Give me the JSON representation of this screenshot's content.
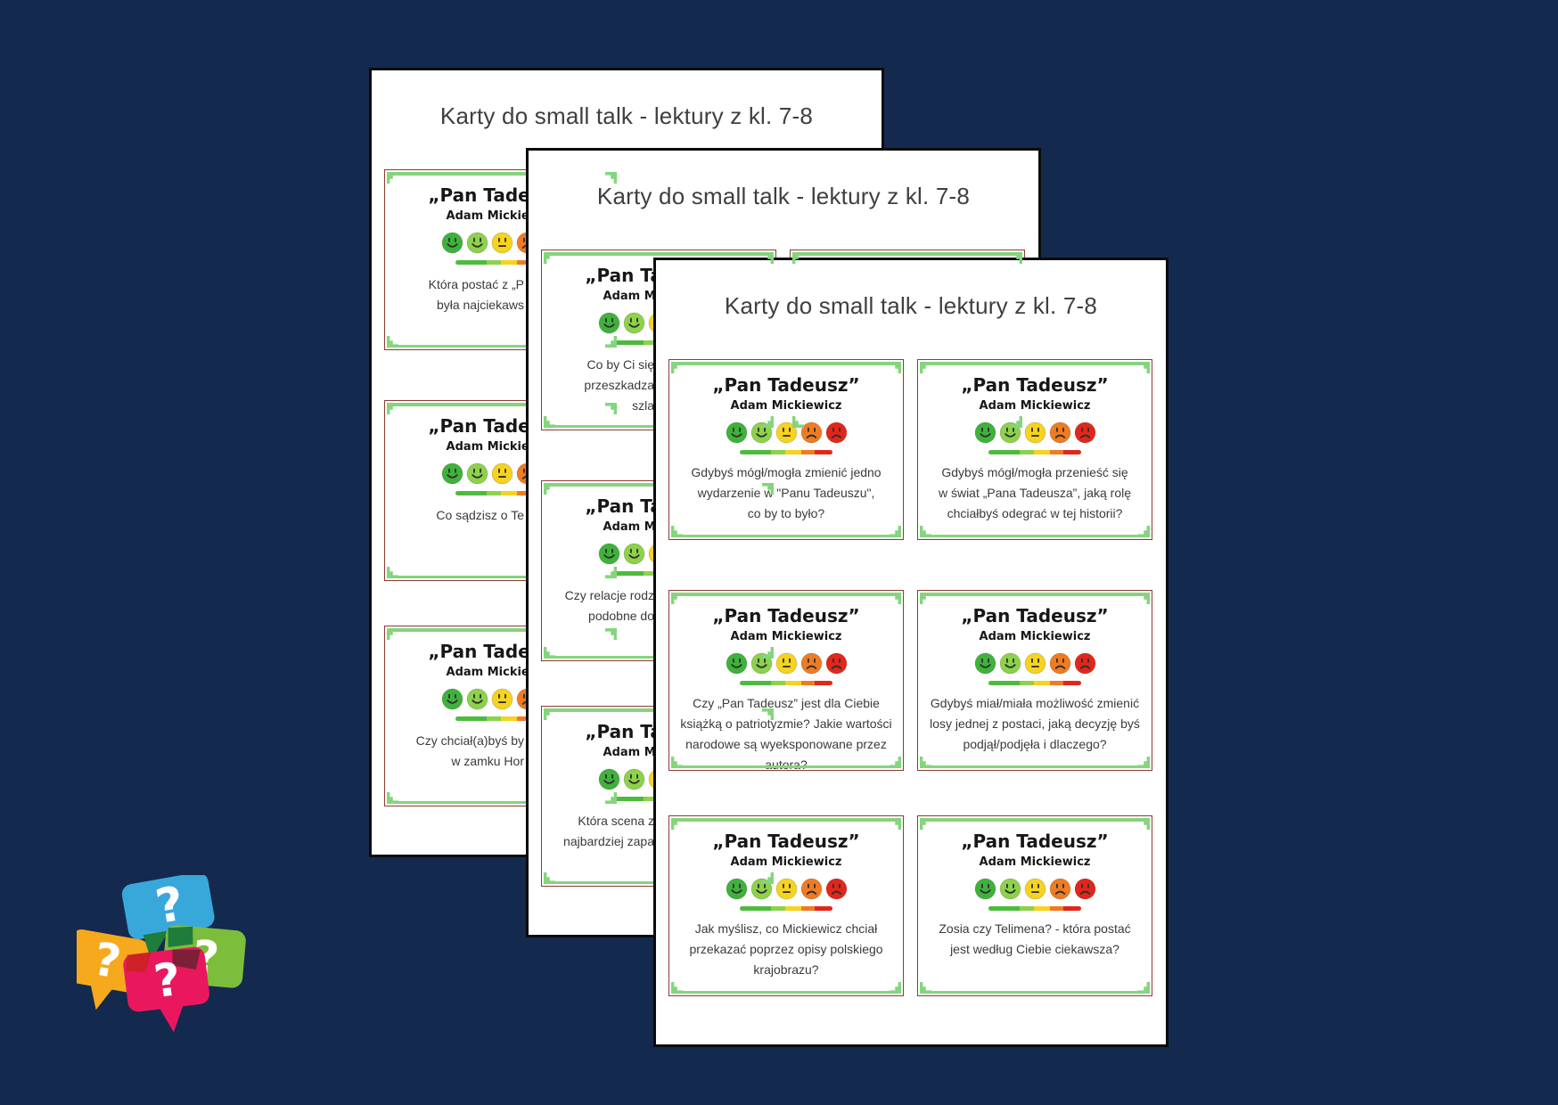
{
  "canvas": {
    "background_color": "#14294E"
  },
  "page_title": "Karty do small talk - lektury z kl. 7-8",
  "card": {
    "title": "„Pan Tadeusz”",
    "author": "Adam Mickiewicz",
    "border_color": "#8B3B35",
    "ornament_color": "#84D57D",
    "emoji_scale": {
      "faces": [
        {
          "name": "very-happy-face-icon",
          "color": "#3FB23C",
          "mouth": "smile"
        },
        {
          "name": "happy-face-icon",
          "color": "#8CD24B",
          "mouth": "smile"
        },
        {
          "name": "neutral-face-icon",
          "color": "#F6D31F",
          "mouth": "flat"
        },
        {
          "name": "sad-face-icon",
          "color": "#EF7B22",
          "mouth": "frown"
        },
        {
          "name": "angry-face-icon",
          "color": "#E2261B",
          "mouth": "frown"
        }
      ],
      "bar_colors": [
        "#4DBB3D",
        "#8CD24B",
        "#F6D31F",
        "#EF7B22",
        "#E2261B"
      ],
      "bar_widths_pct": [
        34,
        15,
        17,
        15,
        19
      ]
    }
  },
  "front_page": {
    "cards": [
      {
        "question": "Gdybyś mógł/mogła zmienić jedno\nwydarzenie w \"Panu Tadeuszu\",\nco by to było?"
      },
      {
        "question": "Gdybyś mógł/mogła przenieść się\nw świat „Pana Tadeusza”, jaką rolę\nchciałbyś odegrać w tej historii?"
      },
      {
        "question": "Czy „Pan Tadeusz” jest dla Ciebie\nksiążką o patriotyzmie? Jakie wartości\nnarodowe są wyeksponowane przez\nautora?"
      },
      {
        "question": "Gdybyś miał/miała możliwość zmienić\nlosy jednej z postaci, jaką decyzję byś\npodjął/podjęła i dlaczego?"
      },
      {
        "question": "Jak myślisz, co Mickiewicz chciał\nprzekazać poprzez opisy polskiego\nkrajobrazu?"
      },
      {
        "question": "Zosia czy Telimena? - która postać\njest według Ciebie ciekawsza?"
      }
    ]
  },
  "middle_page": {
    "cards": [
      {
        "question": "Co by Ci się\nprzeszkadza\nszla"
      },
      {
        "question": "Czy relacje rodz\npodobne do"
      },
      {
        "question": "Która scena z\nnajbardziej zapa"
      }
    ]
  },
  "back_page": {
    "cards": [
      {
        "question": "Która postać z „P\nbyła najciekaws"
      },
      {
        "question": "Co sądzisz o Te"
      },
      {
        "question": "Czy chciał(a)byś by\nw zamku Hor"
      }
    ]
  },
  "logo": {
    "name": "question-speech-bubbles-logo",
    "question_mark": "?",
    "bubble_colors": {
      "blue": "#38A8DB",
      "yellow": "#F6A91D",
      "green": "#7CBE3B",
      "pink": "#E9185E"
    },
    "overlap_colors": {
      "dark_green": "#1E7C3C",
      "red": "#CE2127",
      "maroon": "#7E1F38"
    }
  }
}
